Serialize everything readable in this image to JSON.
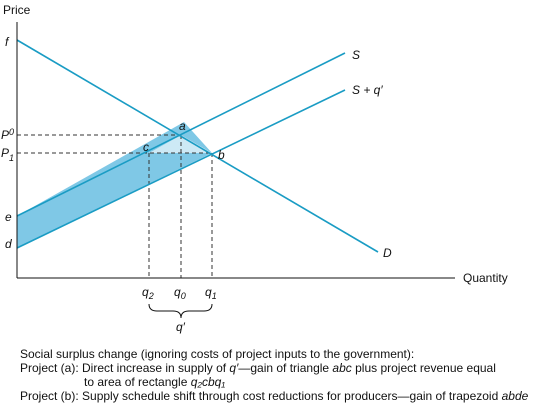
{
  "axes": {
    "y_label": "Price",
    "x_label": "Quantity"
  },
  "curves": {
    "supply": "S",
    "supply_shifted": "S + q′",
    "demand": "D"
  },
  "points": {
    "a": "a",
    "b": "b",
    "c": "c",
    "d": "d",
    "e": "e",
    "f": "f"
  },
  "price_ticks": [
    {
      "base": "P",
      "sub": "0"
    },
    {
      "base": "P",
      "sub": "1"
    }
  ],
  "quantity_ticks": [
    {
      "base": "q",
      "sub": "2"
    },
    {
      "base": "q",
      "sub": "0"
    },
    {
      "base": "q",
      "sub": "1"
    }
  ],
  "brace_label": "q′",
  "colors": {
    "line": "#1a9cc4",
    "triangle_fill": "#cde9f5",
    "trapezoid_fill": "#7fc8e6",
    "dashed": "#333333"
  },
  "caption": {
    "line1": "Social surplus change (ignoring costs of project inputs to the government):",
    "line2_pre": "Project (a): Direct increase in supply of ",
    "line2_q": "q′",
    "line2_mid": "—gain of triangle ",
    "line2_abc": "abc",
    "line2_post": " plus project revenue equal",
    "line3_pre": "to area of rectangle ",
    "line3_rect": "q₂cbq₁",
    "line4_pre": "Project (b): Supply schedule shift through cost reductions for producers—gain of trapezoid ",
    "line4_abde": "abde"
  }
}
